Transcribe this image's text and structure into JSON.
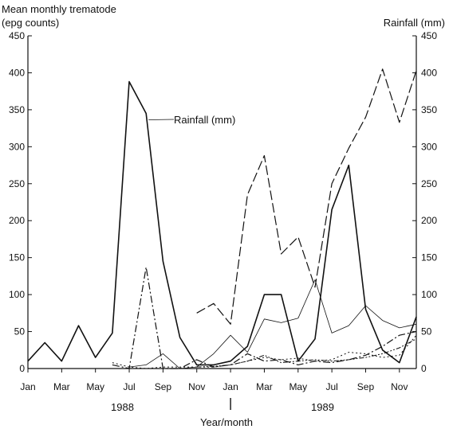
{
  "chart_data": {
    "type": "line",
    "left_axis_title_line1": "Mean monthly trematode",
    "left_axis_title_line2": "(epg counts)",
    "right_axis_title": "Rainfall (mm)",
    "xlabel": "Year/month",
    "year_labels": [
      "1988",
      "1989"
    ],
    "ylim": [
      0,
      450
    ],
    "yticks": [
      0,
      50,
      100,
      150,
      200,
      250,
      300,
      350,
      400,
      450
    ],
    "x": [
      0,
      1,
      2,
      3,
      4,
      5,
      6,
      7,
      8,
      9,
      10,
      11,
      12,
      13,
      14,
      15,
      16,
      17,
      18,
      19,
      20,
      21,
      22,
      23
    ],
    "xtick_positions": [
      0,
      2,
      4,
      6,
      8,
      10,
      12,
      14,
      16,
      18,
      20,
      22
    ],
    "xtick_labels": [
      "Jan",
      "Mar",
      "May",
      "Jul",
      "Sep",
      "Nov",
      "Jan",
      "Mar",
      "May",
      "Jul",
      "Sep",
      "Nov"
    ],
    "annotations": [
      {
        "text": "Rainfall (mm)",
        "series": "Rainfall (mm)",
        "at_index": 7
      }
    ],
    "series": [
      {
        "name": "Rainfall (mm)",
        "style": "solid",
        "values": [
          10,
          35,
          10,
          58,
          15,
          48,
          388,
          345,
          145,
          42,
          5,
          5,
          10,
          30,
          100,
          100,
          10,
          40,
          215,
          275,
          80,
          25,
          8,
          70
        ]
      },
      {
        "style": "long-dash",
        "values": [
          null,
          null,
          null,
          null,
          null,
          null,
          null,
          null,
          null,
          null,
          75,
          88,
          60,
          235,
          288,
          155,
          178,
          110,
          250,
          298,
          340,
          405,
          333,
          403
        ]
      },
      {
        "style": "dash-dot",
        "values": [
          null,
          null,
          null,
          null,
          null,
          5,
          0,
          137,
          0,
          0,
          12,
          2,
          5,
          20,
          10,
          12,
          5,
          10,
          8,
          12,
          18,
          30,
          45,
          50
        ]
      },
      {
        "style": "thin-solid",
        "values": [
          null,
          null,
          null,
          null,
          null,
          null,
          2,
          5,
          20,
          0,
          2,
          20,
          45,
          22,
          67,
          62,
          68,
          120,
          48,
          58,
          85,
          65,
          55,
          60
        ]
      },
      {
        "style": "dotted",
        "values": [
          null,
          null,
          null,
          null,
          null,
          8,
          2,
          0,
          2,
          2,
          2,
          2,
          5,
          10,
          15,
          12,
          14,
          10,
          12,
          22,
          20,
          15,
          18,
          45
        ]
      },
      {
        "style": "dash-dot-dot",
        "values": [
          null,
          null,
          null,
          null,
          null,
          null,
          null,
          null,
          null,
          null,
          2,
          3,
          5,
          10,
          18,
          8,
          10,
          12,
          10,
          12,
          15,
          20,
          28,
          40
        ]
      }
    ]
  }
}
